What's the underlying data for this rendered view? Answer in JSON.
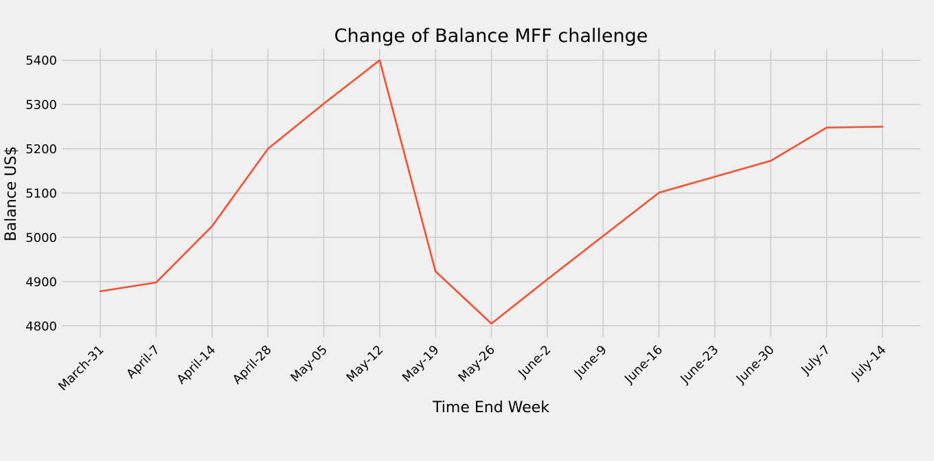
{
  "chart_data": {
    "type": "line",
    "title": "Change of Balance MFF challenge",
    "xlabel": "Time End Week",
    "ylabel": "Balance US$",
    "categories": [
      "March-31",
      "April-7",
      "April-14",
      "April-28",
      "May-05",
      "May-12",
      "May-19",
      "May-26",
      "June-2",
      "June-9",
      "June-16",
      "June-23",
      "June-30",
      "July-7",
      "July-14"
    ],
    "series": [
      {
        "values": [
          4878,
          4898,
          5025,
          5200,
          5302,
          5400,
          4923,
          4805,
          4905,
          5003,
          5101,
          5137,
          5173,
          5248,
          5250
        ],
        "color": "#fc4f30"
      }
    ],
    "yticks": [
      4800,
      4900,
      5000,
      5100,
      5200,
      5300,
      5400
    ],
    "ylim": [
      4774,
      5426
    ],
    "grid": true,
    "legend": "none"
  }
}
